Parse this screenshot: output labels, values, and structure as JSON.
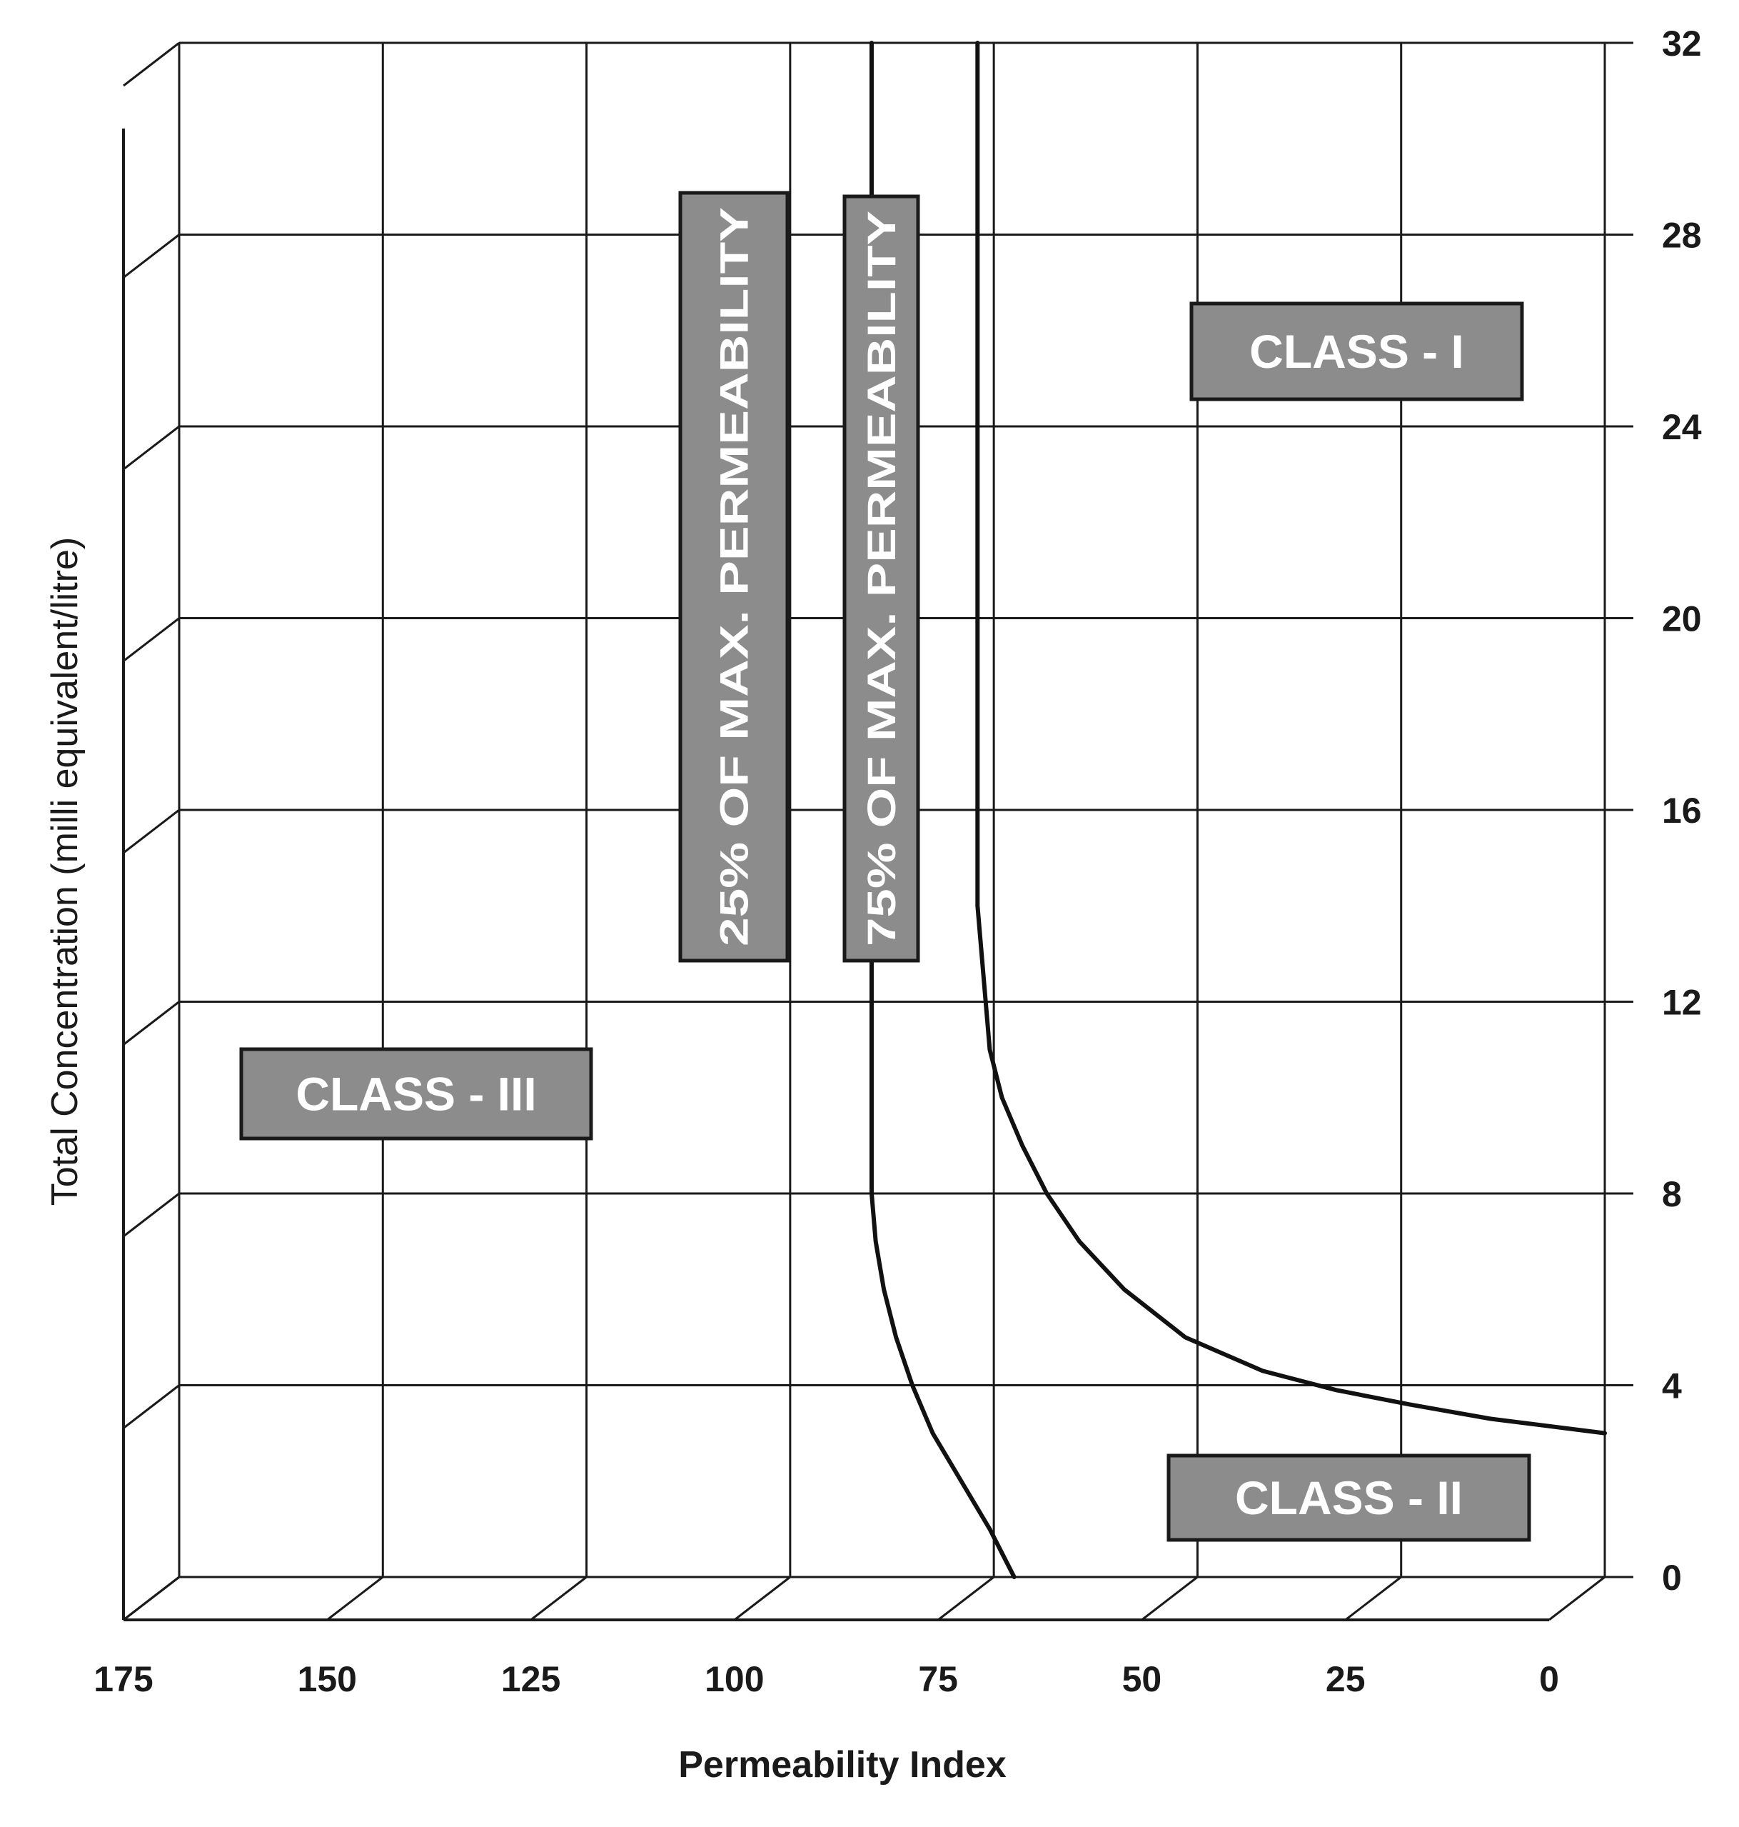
{
  "chart_data": {
    "type": "line",
    "title": "",
    "xlabel": "Permeability Index",
    "ylabel": "Total Concentration (milli equivalent/litre)",
    "x_ticks": [
      "175",
      "150",
      "125",
      "100",
      "75",
      "50",
      "25",
      "0"
    ],
    "y_ticks": [
      "0",
      "4",
      "8",
      "12",
      "16",
      "20",
      "24",
      "28",
      "32"
    ],
    "xlim": [
      175,
      0
    ],
    "ylim": [
      0,
      32
    ],
    "x_reversed": true,
    "grid": true,
    "series": [
      {
        "name": "25% OF MAX. PERMEABILITY",
        "points": [
          [
            90,
            32
          ],
          [
            90,
            24
          ],
          [
            90,
            16
          ],
          [
            90,
            12
          ],
          [
            90,
            8
          ],
          [
            89.5,
            7
          ],
          [
            88.5,
            6
          ],
          [
            87,
            5
          ],
          [
            85,
            4
          ],
          [
            82.5,
            3
          ],
          [
            79,
            2
          ],
          [
            75.5,
            1
          ],
          [
            72.5,
            0
          ]
        ]
      },
      {
        "name": "75% OF MAX. PERMEABILITY",
        "points": [
          [
            77,
            32
          ],
          [
            77,
            24
          ],
          [
            77,
            16
          ],
          [
            77,
            14
          ],
          [
            76.5,
            13
          ],
          [
            76,
            12
          ],
          [
            75.5,
            11
          ],
          [
            74,
            10
          ],
          [
            71.5,
            9
          ],
          [
            68.5,
            8
          ],
          [
            64.5,
            7
          ],
          [
            59,
            6
          ],
          [
            51.5,
            5
          ],
          [
            42,
            4.3
          ],
          [
            33,
            3.9
          ],
          [
            24,
            3.6
          ],
          [
            14,
            3.3
          ],
          [
            0,
            3.0
          ]
        ]
      }
    ],
    "region_labels": [
      "CLASS - I",
      "CLASS - II",
      "CLASS - III"
    ]
  }
}
